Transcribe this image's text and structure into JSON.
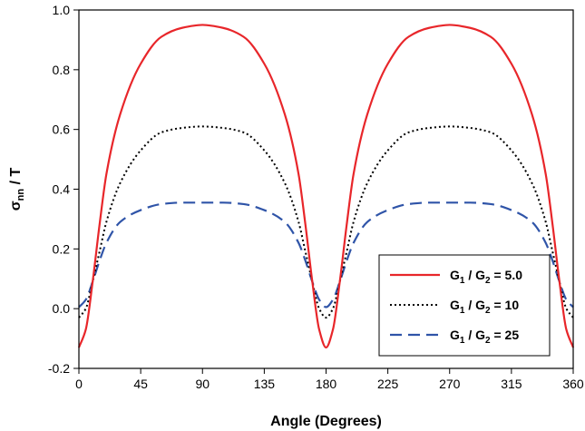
{
  "chart_data": {
    "type": "line",
    "title": "",
    "xlabel": "Angle (Degrees)",
    "ylabel": {
      "main": "σ",
      "sub": "nn",
      "rest": " / T"
    },
    "xlim": [
      0,
      360
    ],
    "ylim": [
      -0.2,
      1.0
    ],
    "x_ticks": [
      0,
      45,
      90,
      135,
      180,
      225,
      270,
      315,
      360
    ],
    "x_tick_labels": [
      "0",
      "45",
      "90",
      "135",
      "180",
      "225",
      "270",
      "315",
      "360"
    ],
    "y_ticks": [
      -0.2,
      0.0,
      0.2,
      0.4,
      0.6,
      0.8,
      1.0
    ],
    "y_tick_labels": [
      "-0.2",
      "0.0",
      "0.2",
      "0.4",
      "0.6",
      "0.8",
      "1.0"
    ],
    "grid": false,
    "legend_position": "bottom-right",
    "x": [
      0,
      5,
      10,
      15,
      20,
      30,
      45,
      60,
      75,
      90,
      105,
      120,
      135,
      150,
      160,
      165,
      170,
      175,
      180,
      185,
      190,
      195,
      200,
      210,
      225,
      240,
      255,
      270,
      285,
      300,
      315,
      330,
      340,
      345,
      350,
      355,
      360
    ],
    "series": [
      {
        "name": "G1 / G2 = 5.0",
        "label": {
          "g1_main": "G",
          "g1_sub": "1",
          "sep": " / ",
          "g2_main": "G",
          "g2_sub": "2",
          "value": " = 5.0"
        },
        "color": "#e8262a",
        "style": "solid",
        "values": [
          -0.13,
          -0.07,
          0.09,
          0.28,
          0.45,
          0.65,
          0.82,
          0.91,
          0.94,
          0.95,
          0.94,
          0.91,
          0.82,
          0.65,
          0.45,
          0.28,
          0.09,
          -0.07,
          -0.13,
          -0.07,
          0.09,
          0.28,
          0.45,
          0.65,
          0.82,
          0.91,
          0.94,
          0.95,
          0.94,
          0.91,
          0.82,
          0.65,
          0.45,
          0.28,
          0.09,
          -0.07,
          -0.13
        ]
      },
      {
        "name": "G1 / G2 = 10",
        "label": {
          "g1_main": "G",
          "g1_sub": "1",
          "sep": " / ",
          "g2_main": "G",
          "g2_sub": "2",
          "value": " = 10"
        },
        "color": "#000000",
        "style": "dotted",
        "values": [
          -0.03,
          0.0,
          0.09,
          0.19,
          0.29,
          0.42,
          0.53,
          0.59,
          0.605,
          0.61,
          0.605,
          0.59,
          0.53,
          0.42,
          0.29,
          0.19,
          0.09,
          0.0,
          -0.03,
          0.0,
          0.09,
          0.19,
          0.29,
          0.42,
          0.53,
          0.59,
          0.605,
          0.61,
          0.605,
          0.59,
          0.53,
          0.42,
          0.29,
          0.19,
          0.09,
          0.0,
          -0.03
        ]
      },
      {
        "name": "G1 / G2 = 25",
        "label": {
          "g1_main": "G",
          "g1_sub": "1",
          "sep": " / ",
          "g2_main": "G",
          "g2_sub": "2",
          "value": " = 25"
        },
        "color": "#2f54a8",
        "style": "dashed",
        "values": [
          0.005,
          0.03,
          0.09,
          0.16,
          0.22,
          0.29,
          0.33,
          0.35,
          0.355,
          0.355,
          0.355,
          0.35,
          0.33,
          0.29,
          0.22,
          0.16,
          0.09,
          0.03,
          0.005,
          0.03,
          0.09,
          0.16,
          0.22,
          0.29,
          0.33,
          0.35,
          0.355,
          0.355,
          0.355,
          0.35,
          0.33,
          0.29,
          0.22,
          0.16,
          0.09,
          0.03,
          0.005
        ]
      }
    ]
  }
}
